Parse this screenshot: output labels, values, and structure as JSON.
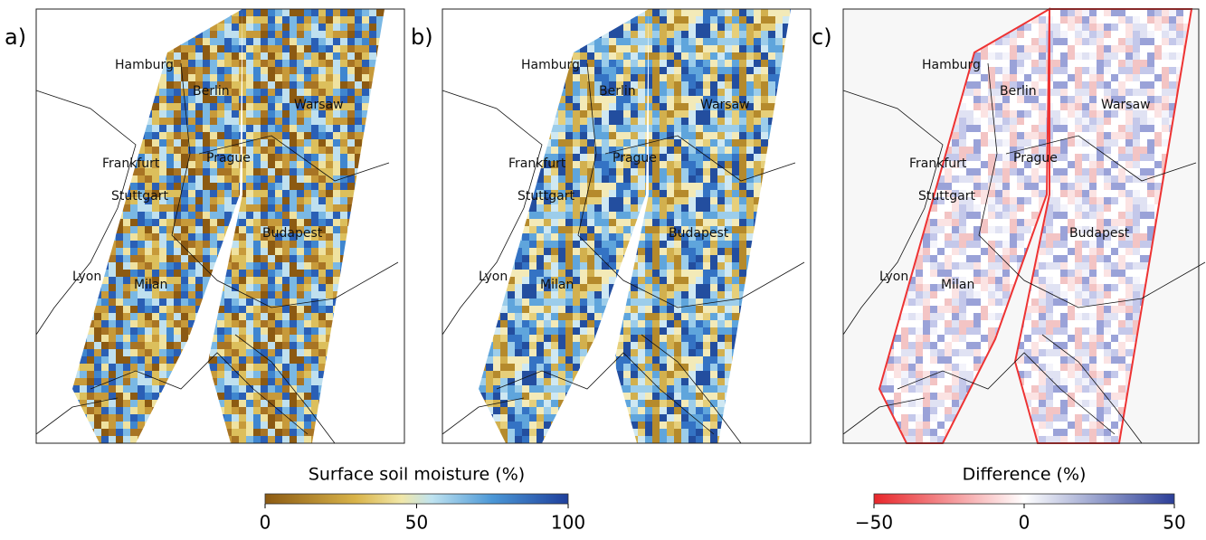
{
  "panels": [
    {
      "label": "a)",
      "cities": [
        "Hamburg",
        "Berlin",
        "Warsaw",
        "Frankfurt",
        "Prague",
        "Stuttgart",
        "Budapest",
        "Lyon",
        "Milan"
      ]
    },
    {
      "label": "b)",
      "cities": [
        "Hamburg",
        "Berlin",
        "Warsaw",
        "Frankfurt",
        "Prague",
        "Stuttgart",
        "Budapest",
        "Lyon",
        "Milan"
      ]
    },
    {
      "label": "c)",
      "cities": [
        "Hamburg",
        "Berlin",
        "Warsaw",
        "Frankfurt",
        "Prague",
        "Stuttgart",
        "Budapest",
        "Lyon",
        "Milan"
      ]
    }
  ],
  "colorbars": [
    {
      "title": "Surface soil moisture (%)",
      "range": [
        0,
        100
      ],
      "ticks": [
        0,
        50,
        100
      ]
    },
    {
      "title": "Difference (%)",
      "range": [
        -50,
        50
      ],
      "ticks": [
        {
          "value": -50,
          "label": "−50"
        },
        0,
        50
      ]
    }
  ]
}
